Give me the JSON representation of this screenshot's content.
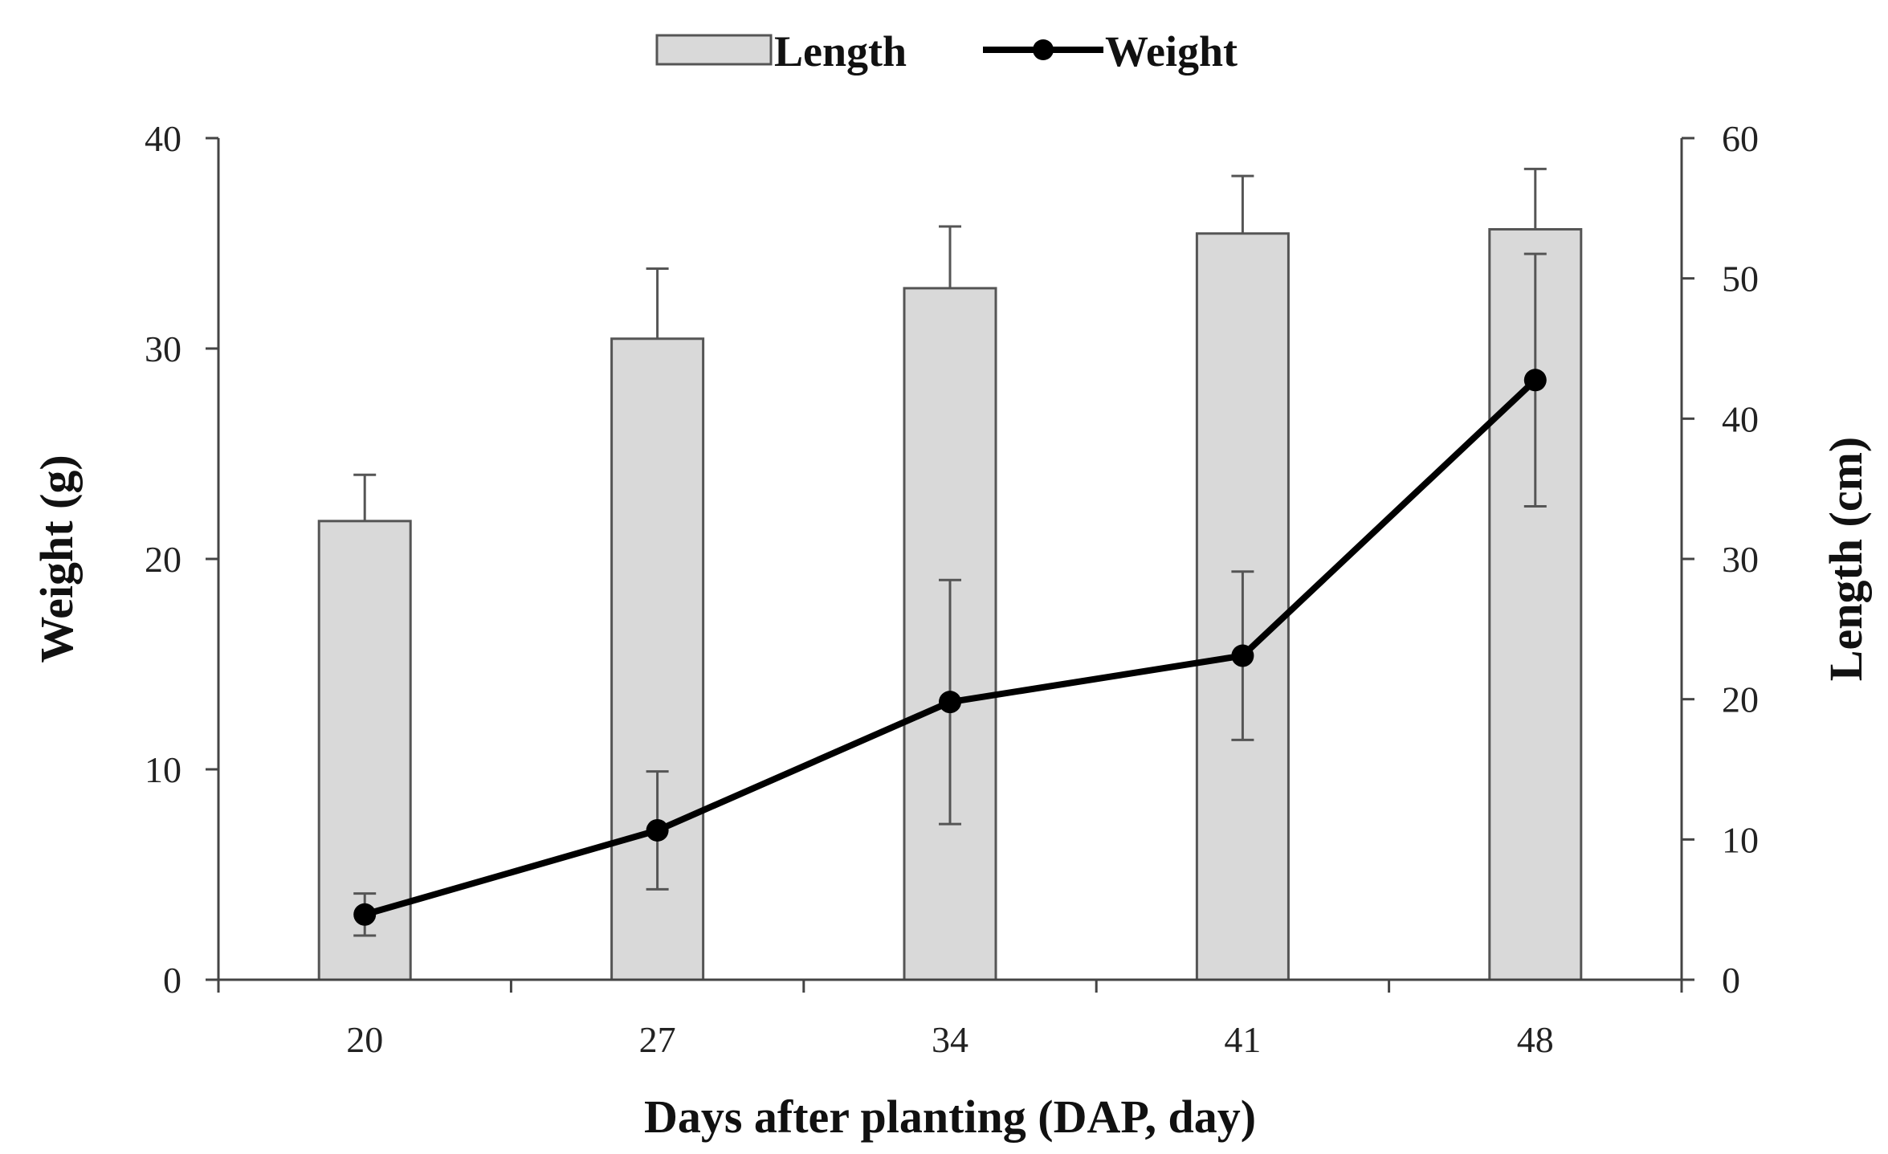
{
  "chart_data": {
    "type": "bar+line",
    "x": {
      "label": "Days after planting (DAP, day)",
      "categories": [
        "20",
        "27",
        "34",
        "41",
        "48"
      ]
    },
    "y_left": {
      "label": "Weight (g)",
      "range": [
        0,
        40
      ],
      "ticks": [
        0,
        10,
        20,
        30,
        40
      ]
    },
    "y_right": {
      "label": "Length (cm)",
      "range": [
        0,
        60
      ],
      "ticks": [
        0,
        10,
        20,
        30,
        40,
        50,
        60
      ]
    },
    "legend": {
      "placement": "top-center",
      "items": [
        {
          "name": "Length",
          "kind": "bar"
        },
        {
          "name": "Weight",
          "kind": "line-marker"
        }
      ]
    },
    "series": [
      {
        "name": "Length",
        "type": "bar",
        "axis": "right",
        "values": [
          32.7,
          45.7,
          49.3,
          53.2,
          53.5
        ],
        "error": [
          3.3,
          5.0,
          4.4,
          4.1,
          4.3
        ],
        "color": "#d9d9d9",
        "stroke": "#555555"
      },
      {
        "name": "Weight",
        "type": "line",
        "axis": "left",
        "values": [
          3.1,
          7.1,
          13.2,
          15.4,
          28.5
        ],
        "error": [
          1.0,
          2.8,
          5.8,
          4.0,
          6.0
        ],
        "color": "#000000"
      }
    ],
    "grid": false
  }
}
